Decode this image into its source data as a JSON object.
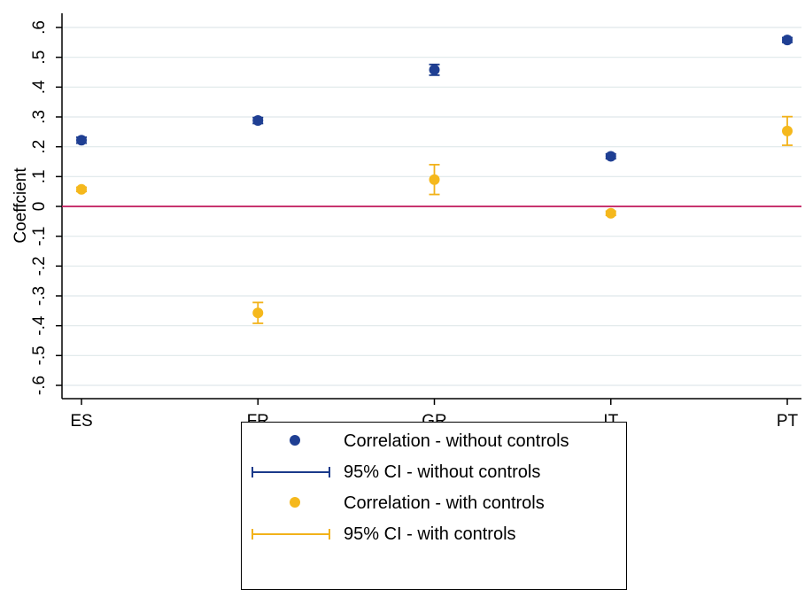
{
  "chart_data": {
    "type": "scatter",
    "categories": [
      "ES",
      "FR",
      "GR",
      "IT",
      "PT"
    ],
    "ylabel": "Coeffcient",
    "ylim": [
      -0.6,
      0.6
    ],
    "yticks": [
      ".6",
      ".5",
      ".4",
      ".3",
      ".2",
      ".1",
      "0",
      "-.1",
      "-.2",
      "-.3",
      "-.4",
      "-.5",
      "-.6"
    ],
    "ytick_values": [
      0.6,
      0.5,
      0.4,
      0.3,
      0.2,
      0.1,
      0,
      -0.1,
      -0.2,
      -0.3,
      -0.4,
      -0.5,
      -0.6
    ],
    "reference_line": 0,
    "grid": true,
    "series": [
      {
        "name": "Correlation - without controls",
        "ci_name": "95% CI  - without controls",
        "color": "#1f3f93",
        "line_color": "#1a3a8a",
        "values": [
          0.222,
          0.288,
          0.458,
          0.168,
          0.558
        ],
        "ci_low": [
          0.212,
          0.278,
          0.44,
          0.16,
          0.55
        ],
        "ci_high": [
          0.232,
          0.298,
          0.476,
          0.176,
          0.566
        ]
      },
      {
        "name": "Correlation - with controls",
        "ci_name": "95% CI  - with controls",
        "color": "#f5b81c",
        "line_color": "#f2b21a",
        "values": [
          0.057,
          -0.357,
          0.09,
          -0.023,
          0.253
        ],
        "ci_low": [
          0.05,
          -0.392,
          0.04,
          -0.03,
          0.205
        ],
        "ci_high": [
          0.064,
          -0.322,
          0.14,
          -0.016,
          0.301
        ]
      }
    ],
    "reference_line_color": "#c2185b",
    "legend_position": "bottom-center"
  }
}
